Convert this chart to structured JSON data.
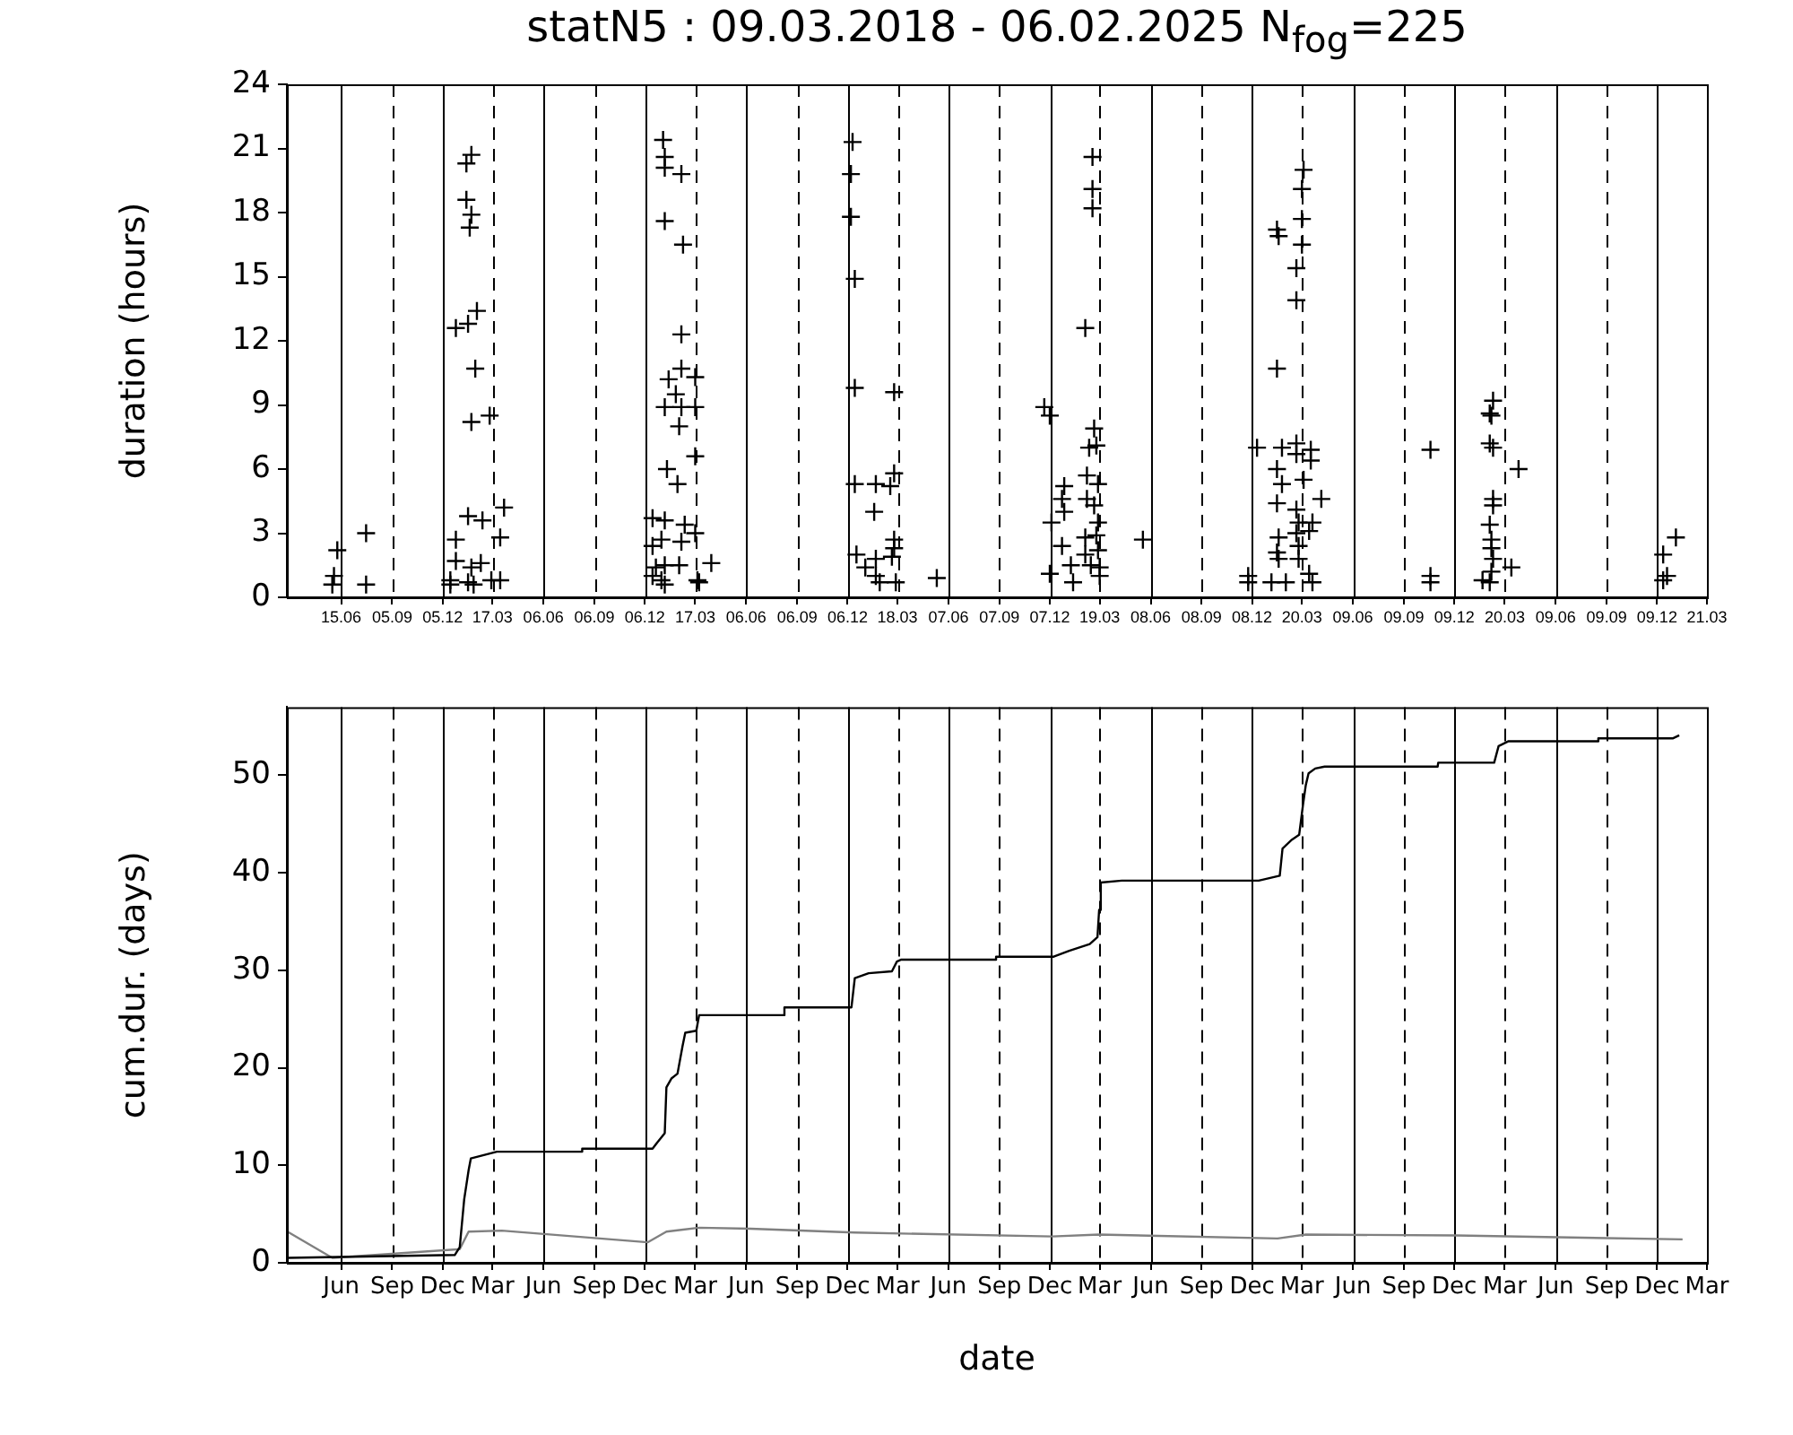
{
  "chart_data": [
    {
      "type": "scatter",
      "title": "statN5 : 09.03.2018 - 06.02.2025 N$_{fog}$=225",
      "ylabel": "duration (hours)",
      "xlim": [
        "2018-03-09",
        "2025-03-15"
      ],
      "xticks": [
        {
          "value": "2018-06-15",
          "label": "15.06"
        },
        {
          "value": "2018-09-15",
          "label": "05.09"
        },
        {
          "value": "2018-12-15",
          "label": "05.12"
        },
        {
          "value": "2019-03-15",
          "label": "17.03"
        },
        {
          "value": "2019-06-15",
          "label": "06.06"
        },
        {
          "value": "2019-09-15",
          "label": "06.09"
        },
        {
          "value": "2019-12-15",
          "label": "06.12"
        },
        {
          "value": "2020-03-15",
          "label": "17.03"
        },
        {
          "value": "2020-06-15",
          "label": "06.06"
        },
        {
          "value": "2020-09-15",
          "label": "06.09"
        },
        {
          "value": "2020-12-15",
          "label": "06.12"
        },
        {
          "value": "2021-03-15",
          "label": "18.03"
        },
        {
          "value": "2021-06-15",
          "label": "07.06"
        },
        {
          "value": "2021-09-15",
          "label": "07.09"
        },
        {
          "value": "2021-12-15",
          "label": "07.12"
        },
        {
          "value": "2022-03-15",
          "label": "19.03"
        },
        {
          "value": "2022-06-15",
          "label": "08.06"
        },
        {
          "value": "2022-09-15",
          "label": "08.09"
        },
        {
          "value": "2022-12-15",
          "label": "08.12"
        },
        {
          "value": "2023-03-15",
          "label": "20.03"
        },
        {
          "value": "2023-06-15",
          "label": "09.06"
        },
        {
          "value": "2023-09-15",
          "label": "09.09"
        },
        {
          "value": "2023-12-15",
          "label": "09.12"
        },
        {
          "value": "2024-03-15",
          "label": "20.03"
        },
        {
          "value": "2024-06-15",
          "label": "09.06"
        },
        {
          "value": "2024-09-15",
          "label": "09.09"
        },
        {
          "value": "2024-12-15",
          "label": "09.12"
        },
        {
          "value": "2025-03-15",
          "label": "21.03"
        }
      ],
      "ylim": [
        0,
        24
      ],
      "yticks": [
        0,
        3,
        6,
        9,
        12,
        15,
        18,
        21,
        24
      ],
      "grid": "x",
      "marker": "cross",
      "series": [
        {
          "color": "#000000",
          "x": [
            "2018-06-02",
            "2018-05-30",
            "2018-06-08",
            "2018-07-30",
            "2018-07-30",
            "2019-02-05",
            "2019-01-27",
            "2019-01-27",
            "2019-02-05",
            "2019-02-02",
            "2019-02-15",
            "2019-01-08",
            "2019-01-30",
            "2019-02-12",
            "2019-03-10",
            "2019-02-05",
            "2019-04-05",
            "2019-01-30",
            "2019-02-25",
            "2019-03-29",
            "2019-01-08",
            "2019-01-08",
            "2019-02-22",
            "2019-02-05",
            "2018-12-29",
            "2019-01-30",
            "2019-03-13",
            "2019-03-29",
            "2018-12-29",
            "2019-02-09",
            "2020-01-17",
            "2020-01-20",
            "2020-01-20",
            "2020-02-19",
            "2020-01-20",
            "2020-02-22",
            "2020-02-19",
            "2020-02-19",
            "2020-03-15",
            "2020-01-27",
            "2020-02-09",
            "2020-01-20",
            "2020-02-19",
            "2020-03-15",
            "2020-02-15",
            "2020-03-15",
            "2020-01-24",
            "2020-02-12",
            "2019-12-29",
            "2020-01-20",
            "2020-02-25",
            "2020-03-15",
            "2020-01-14",
            "2019-12-29",
            "2020-02-19",
            "2020-04-13",
            "2020-01-04",
            "2020-01-20",
            "2020-02-15",
            "2019-12-29",
            "2020-01-14",
            "2020-03-19",
            "2020-01-20",
            "2020-03-22",
            "2020-12-24",
            "2020-12-21",
            "2020-12-21",
            "2020-12-28",
            "2020-12-28",
            "2021-03-09",
            "2020-12-28",
            "2021-02-04",
            "2021-03-02",
            "2021-03-09",
            "2021-02-01",
            "2021-03-09",
            "2020-12-31",
            "2021-02-04",
            "2021-03-05",
            "2021-03-09",
            "2021-01-16",
            "2021-02-04",
            "2021-02-11",
            "2021-03-12",
            "2021-05-25",
            "2021-12-05",
            "2021-12-15",
            "2022-03-02",
            "2022-03-02",
            "2022-03-02",
            "2022-02-17",
            "2022-03-05",
            "2022-03-09",
            "2022-02-24",
            "2022-01-10",
            "2022-02-20",
            "2022-03-12",
            "2022-01-06",
            "2022-01-10",
            "2022-02-20",
            "2022-03-05",
            "2021-12-18",
            "2022-03-12",
            "2022-03-09",
            "2022-02-17",
            "2022-01-06",
            "2022-03-12",
            "2022-02-17",
            "2022-01-22",
            "2022-02-27",
            "2022-03-15",
            "2021-12-15",
            "2022-01-26",
            "2022-03-15",
            "2022-06-01",
            "2022-12-08",
            "2022-12-08",
            "2022-12-24",
            "2023-01-29",
            "2023-02-01",
            "2023-01-29",
            "2023-02-07",
            "2023-03-05",
            "2023-03-05",
            "2023-03-31",
            "2023-03-31",
            "2023-03-18",
            "2023-03-15",
            "2023-03-15",
            "2023-03-15",
            "2023-03-05",
            "2023-03-05",
            "2023-01-29",
            "2023-02-07",
            "2023-03-18",
            "2023-01-29",
            "2023-04-19",
            "2023-03-05",
            "2023-03-09",
            "2023-04-03",
            "2023-03-05",
            "2023-03-28",
            "2023-02-01",
            "2023-03-09",
            "2023-01-29",
            "2023-02-01",
            "2023-03-09",
            "2023-01-19",
            "2023-02-14",
            "2023-03-28",
            "2023-04-03",
            "2023-11-02",
            "2023-11-02",
            "2023-11-02",
            "2024-02-23",
            "2024-02-17",
            "2024-02-20",
            "2024-02-17",
            "2024-02-23",
            "2024-04-09",
            "2024-02-23",
            "2024-02-23",
            "2024-02-17",
            "2024-02-20",
            "2024-02-20",
            "2024-02-23",
            "2024-03-27",
            "2024-02-20",
            "2024-02-04",
            "2024-02-17",
            "2025-01-18",
            "2024-12-26",
            "2025-01-02",
            "2024-12-26"
          ],
          "values": [
            1.0,
            0.6,
            2.2,
            3.0,
            0.6,
            20.7,
            20.3,
            18.6,
            17.9,
            17.3,
            13.4,
            12.6,
            12.8,
            10.7,
            8.5,
            8.2,
            4.2,
            3.8,
            3.6,
            2.8,
            2.7,
            1.7,
            1.6,
            1.4,
            0.8,
            0.7,
            0.8,
            0.8,
            0.6,
            0.6,
            21.4,
            20.6,
            20.1,
            19.8,
            17.6,
            16.5,
            12.3,
            10.7,
            10.3,
            10.2,
            9.5,
            8.9,
            8.9,
            8.9,
            8.0,
            6.6,
            6.0,
            5.3,
            3.7,
            3.6,
            3.4,
            3.0,
            2.7,
            2.4,
            2.6,
            1.6,
            1.4,
            1.5,
            1.5,
            1.0,
            0.8,
            0.8,
            0.6,
            0.7,
            21.3,
            19.8,
            17.8,
            14.9,
            9.8,
            9.6,
            5.3,
            5.3,
            5.2,
            5.8,
            4.0,
            2.7,
            2.0,
            1.8,
            1.9,
            2.3,
            1.4,
            1.0,
            0.7,
            0.7,
            0.9,
            8.9,
            8.5,
            20.6,
            19.1,
            18.2,
            12.6,
            7.9,
            7.1,
            7.0,
            5.2,
            5.7,
            5.3,
            4.6,
            4.0,
            4.6,
            4.3,
            3.5,
            3.5,
            2.9,
            2.8,
            2.4,
            2.2,
            2.0,
            1.5,
            1.5,
            1.4,
            1.1,
            0.7,
            1.0,
            2.7,
            1.0,
            0.7,
            7.0,
            17.2,
            16.9,
            10.7,
            7.0,
            7.2,
            6.7,
            6.9,
            6.4,
            20.0,
            19.1,
            17.7,
            16.5,
            15.4,
            13.9,
            6.0,
            5.3,
            5.5,
            4.4,
            4.6,
            4.1,
            3.5,
            3.5,
            3.0,
            3.1,
            2.8,
            2.4,
            2.1,
            1.8,
            1.8,
            0.7,
            0.7,
            1.1,
            0.7,
            6.9,
            1.0,
            0.7,
            9.2,
            8.6,
            8.5,
            7.2,
            7.0,
            6.0,
            4.6,
            4.3,
            3.4,
            2.7,
            2.3,
            1.8,
            1.4,
            1.2,
            0.8,
            0.7,
            2.8,
            2.0,
            1.0,
            0.8
          ]
        }
      ]
    },
    {
      "type": "line",
      "xlabel": "date",
      "ylabel": "cum.dur. (days)",
      "xlim": [
        "2018-03-09",
        "2025-03-15"
      ],
      "xticks": [
        {
          "value": "2018-06-15",
          "label": "Jun"
        },
        {
          "value": "2018-09-15",
          "label": "Sep"
        },
        {
          "value": "2018-12-15",
          "label": "Dec"
        },
        {
          "value": "2019-03-15",
          "label": "Mar"
        },
        {
          "value": "2019-06-15",
          "label": "Jun"
        },
        {
          "value": "2019-09-15",
          "label": "Sep"
        },
        {
          "value": "2019-12-15",
          "label": "Dec"
        },
        {
          "value": "2020-03-15",
          "label": "Mar"
        },
        {
          "value": "2020-06-15",
          "label": "Jun"
        },
        {
          "value": "2020-09-15",
          "label": "Sep"
        },
        {
          "value": "2020-12-15",
          "label": "Dec"
        },
        {
          "value": "2021-03-15",
          "label": "Mar"
        },
        {
          "value": "2021-06-15",
          "label": "Jun"
        },
        {
          "value": "2021-09-15",
          "label": "Sep"
        },
        {
          "value": "2021-12-15",
          "label": "Dec"
        },
        {
          "value": "2022-03-15",
          "label": "Mar"
        },
        {
          "value": "2022-06-15",
          "label": "Jun"
        },
        {
          "value": "2022-09-15",
          "label": "Sep"
        },
        {
          "value": "2022-12-15",
          "label": "Dec"
        },
        {
          "value": "2023-03-15",
          "label": "Mar"
        },
        {
          "value": "2023-06-15",
          "label": "Jun"
        },
        {
          "value": "2023-09-15",
          "label": "Sep"
        },
        {
          "value": "2023-12-15",
          "label": "Dec"
        },
        {
          "value": "2024-03-15",
          "label": "Mar"
        },
        {
          "value": "2024-06-15",
          "label": "Jun"
        },
        {
          "value": "2024-09-15",
          "label": "Sep"
        },
        {
          "value": "2024-12-15",
          "label": "Dec"
        },
        {
          "value": "2025-03-15",
          "label": "Mar"
        }
      ],
      "ylim": [
        0,
        57
      ],
      "yticks": [
        0,
        10,
        20,
        30,
        40,
        50
      ],
      "grid": "x",
      "marker": "none",
      "line_style": "solid",
      "series": [
        {
          "color": "#000000",
          "x": [
            "2018-03-10",
            "2019-01-06",
            "2019-01-15",
            "2019-01-23",
            "2019-01-31",
            "2019-02-04",
            "2019-03-23",
            "2019-08-23",
            "2019-08-24",
            "2019-12-29",
            "2020-01-06",
            "2020-01-20",
            "2020-01-23",
            "2020-02-01",
            "2020-02-12",
            "2020-02-21",
            "2020-02-26",
            "2020-03-17",
            "2020-03-22",
            "2020-08-22",
            "2020-08-23",
            "2020-12-22",
            "2020-12-28",
            "2021-01-22",
            "2021-03-05",
            "2021-03-14",
            "2021-03-22",
            "2021-09-08",
            "2021-09-09",
            "2021-12-22",
            "2022-01-19",
            "2022-02-25",
            "2022-03-11",
            "2022-03-14",
            "2022-03-17",
            "2022-04-24",
            "2022-12-27",
            "2023-02-03",
            "2023-02-08",
            "2023-02-25",
            "2023-03-10",
            "2023-03-17",
            "2023-03-22",
            "2023-03-27",
            "2023-04-08",
            "2023-04-25",
            "2023-11-15",
            "2023-11-16",
            "2024-02-25",
            "2024-03-04",
            "2024-03-22",
            "2024-08-30",
            "2024-08-31",
            "2025-01-13",
            "2025-01-24"
          ],
          "values": [
            0.5,
            0.8,
            1.6,
            6.5,
            9.5,
            10.7,
            11.4,
            11.4,
            11.7,
            11.7,
            12.3,
            13.3,
            18.0,
            18.9,
            19.4,
            22.2,
            23.6,
            23.8,
            25.4,
            25.4,
            26.2,
            26.2,
            29.2,
            29.7,
            29.9,
            30.9,
            31.1,
            31.1,
            31.4,
            31.4,
            32.0,
            32.7,
            33.4,
            36.2,
            39.0,
            39.2,
            39.2,
            39.7,
            42.5,
            43.4,
            43.9,
            47.0,
            49.0,
            50.2,
            50.7,
            50.9,
            50.9,
            51.3,
            51.3,
            53.0,
            53.5,
            53.5,
            53.8,
            53.8,
            54.1
          ]
        },
        {
          "color": "#808080",
          "x": [
            "2018-03-10",
            "2018-05-30",
            "2019-01-15",
            "2019-01-31",
            "2019-04-01",
            "2019-12-20",
            "2020-01-23",
            "2020-03-22",
            "2020-06-23",
            "2020-12-28",
            "2021-12-19",
            "2022-03-14",
            "2023-01-30",
            "2023-03-22",
            "2023-12-19",
            "2025-01-30"
          ],
          "values": [
            3.2,
            0.5,
            1.4,
            3.2,
            3.3,
            2.1,
            3.2,
            3.6,
            3.5,
            3.1,
            2.7,
            2.9,
            2.5,
            2.9,
            2.8,
            2.4
          ]
        }
      ]
    }
  ]
}
